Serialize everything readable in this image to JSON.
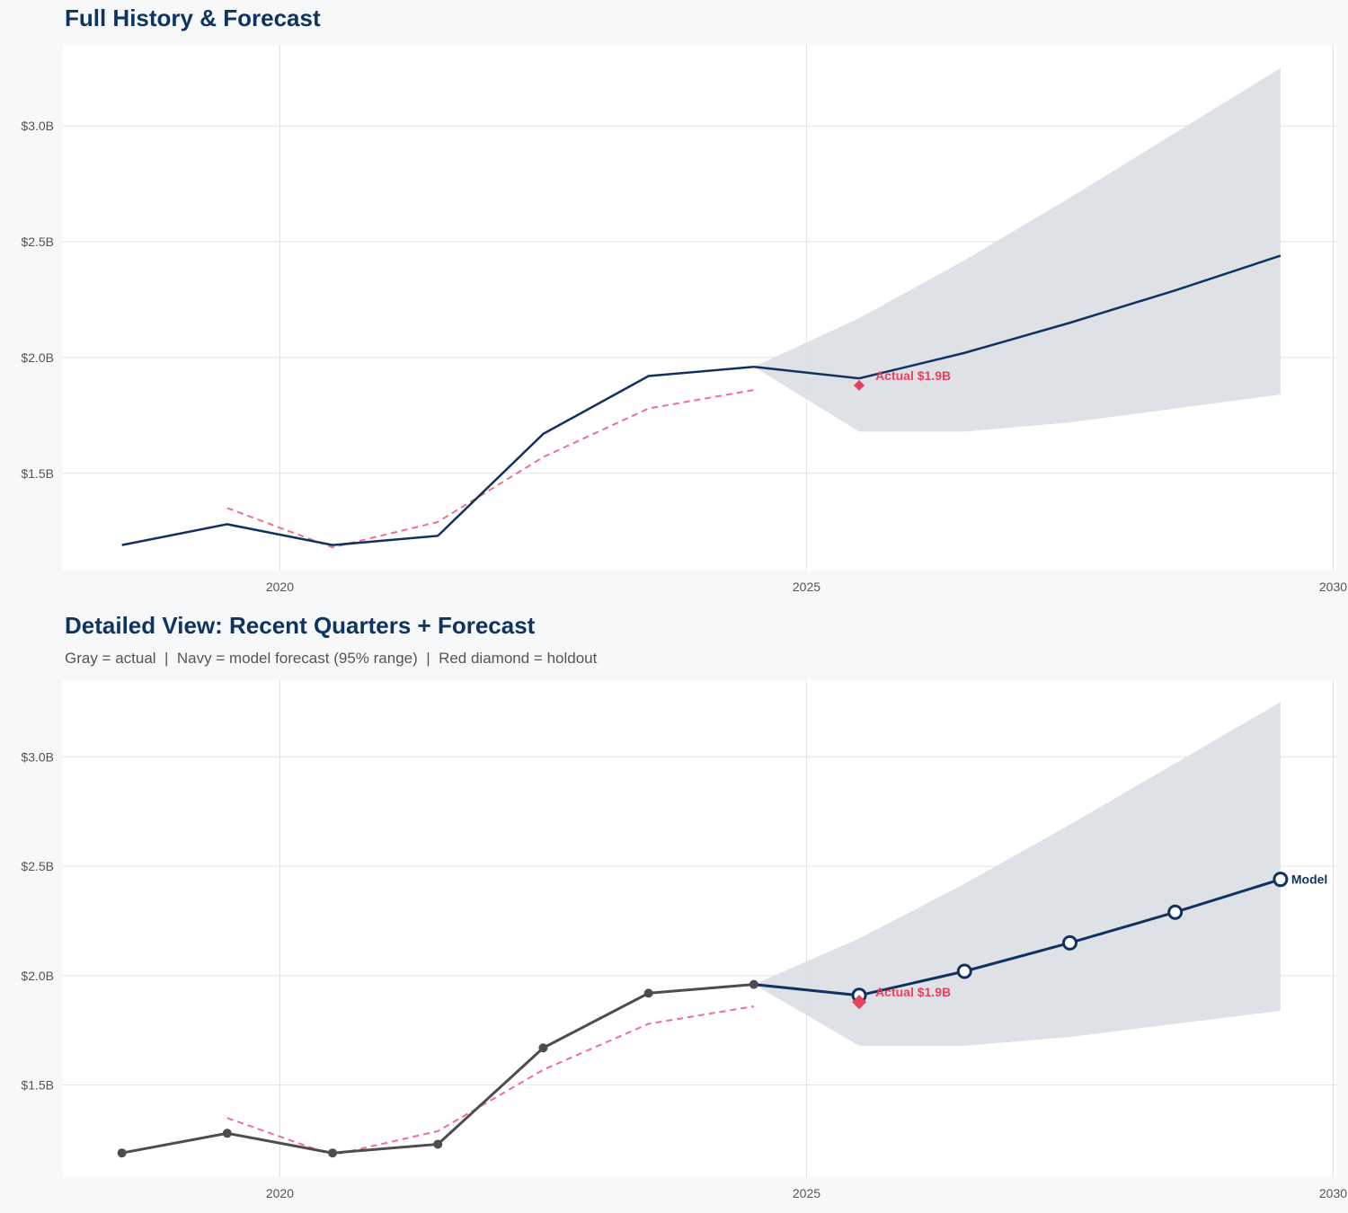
{
  "colors": {
    "navy": "#12325e",
    "gray": "#4d4d4d",
    "red": "#e8415f",
    "band": "#dce0e6",
    "grid": "#e2e2e2"
  },
  "chart_data": [
    {
      "type": "line",
      "title": "Full History & Forecast",
      "xlim": [
        2017.94,
        2030.03
      ],
      "ylim": [
        1.08,
        3.35
      ],
      "x_ticks": [
        2020,
        2025,
        2030
      ],
      "x_tick_labels": [
        "2020",
        "2025",
        "2030"
      ],
      "y_ticks": [
        1.5,
        2.0,
        2.5,
        3.0
      ],
      "y_tick_labels": [
        "$1.5B",
        "$2.0B",
        "$2.5B",
        "$3.0B"
      ],
      "grid": true,
      "actual": {
        "x": [
          2018.5,
          2019.5,
          2020.5,
          2021.5,
          2022.5,
          2023.5,
          2024.5
        ],
        "y": [
          1.19,
          1.28,
          1.19,
          1.23,
          1.67,
          1.92,
          1.96
        ]
      },
      "red_dashed": {
        "x": [
          2019.5,
          2020.5,
          2021.5,
          2022.5,
          2023.5,
          2024.5
        ],
        "y": [
          1.35,
          1.18,
          1.29,
          1.57,
          1.78,
          1.86
        ]
      },
      "forecast": {
        "x": [
          2024.5,
          2025.5,
          2026.5,
          2027.5,
          2028.5,
          2029.5
        ],
        "y": [
          1.96,
          1.91,
          2.02,
          2.15,
          2.29,
          2.44
        ]
      },
      "band_upper": [
        1.96,
        2.17,
        2.42,
        2.69,
        2.97,
        3.25
      ],
      "band_lower": [
        1.96,
        1.68,
        1.68,
        1.72,
        1.78,
        1.84
      ],
      "holdout": {
        "x": 2025.5,
        "y": 1.88,
        "label": "Actual $1.9B"
      },
      "markers": false
    },
    {
      "type": "line",
      "title": "Detailed View: Recent Quarters + Forecast",
      "subtitle": "Gray = actual  |  Navy = model forecast (95% range)  |  Red diamond = holdout",
      "xlim": [
        2017.94,
        2030.03
      ],
      "ylim": [
        1.08,
        3.35
      ],
      "x_ticks": [
        2020,
        2025,
        2030
      ],
      "x_tick_labels": [
        "2020",
        "2025",
        "2030"
      ],
      "y_ticks": [
        1.5,
        2.0,
        2.5,
        3.0
      ],
      "y_tick_labels": [
        "$1.5B",
        "$2.0B",
        "$2.5B",
        "$3.0B"
      ],
      "grid": true,
      "actual": {
        "x": [
          2018.5,
          2019.5,
          2020.5,
          2021.5,
          2022.5,
          2023.5,
          2024.5
        ],
        "y": [
          1.19,
          1.28,
          1.19,
          1.23,
          1.67,
          1.92,
          1.96
        ]
      },
      "red_dashed": {
        "x": [
          2019.5,
          2020.5,
          2021.5,
          2022.5,
          2023.5,
          2024.5
        ],
        "y": [
          1.35,
          1.18,
          1.29,
          1.57,
          1.78,
          1.86
        ]
      },
      "forecast": {
        "x": [
          2024.5,
          2025.5,
          2026.5,
          2027.5,
          2028.5,
          2029.5
        ],
        "y": [
          1.96,
          1.91,
          2.02,
          2.15,
          2.29,
          2.44
        ]
      },
      "band_upper": [
        1.96,
        2.17,
        2.42,
        2.69,
        2.97,
        3.25
      ],
      "band_lower": [
        1.96,
        1.68,
        1.68,
        1.72,
        1.78,
        1.84
      ],
      "holdout": {
        "x": 2025.5,
        "y": 1.88,
        "label": "Actual $1.9B"
      },
      "forecast_end_label": "Model",
      "markers": true
    }
  ]
}
